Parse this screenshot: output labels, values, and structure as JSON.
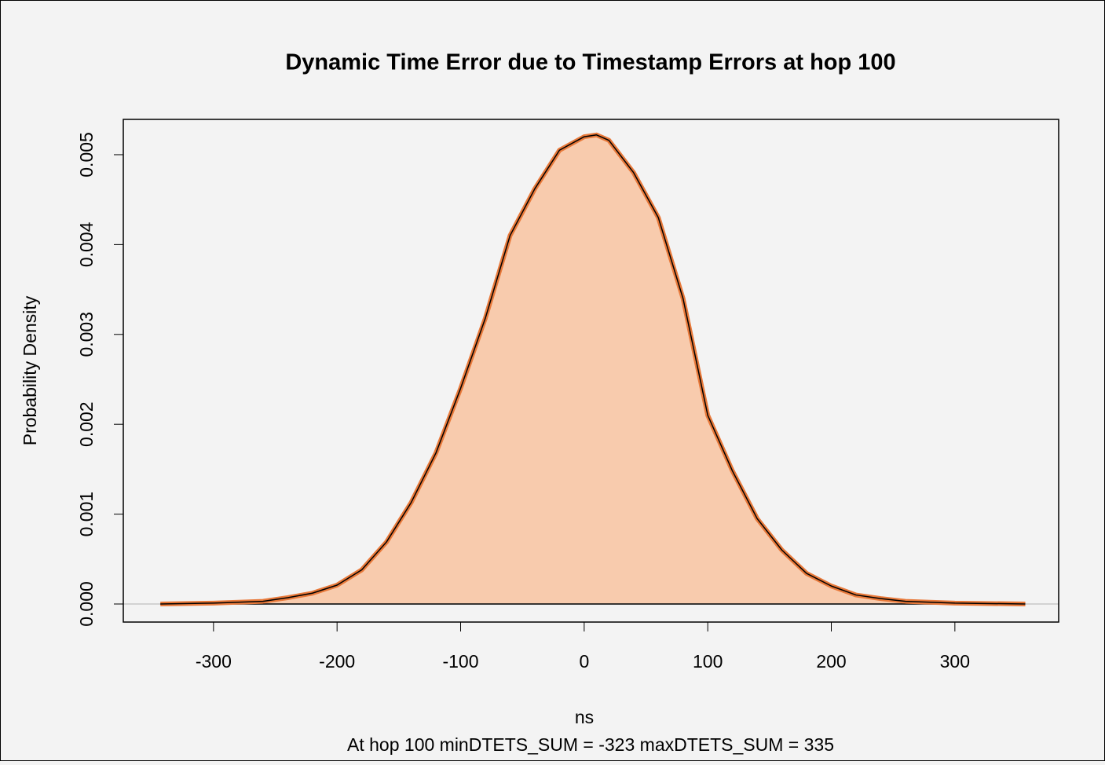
{
  "chart_data": {
    "type": "area",
    "title": "Dynamic Time Error due to Timestamp Errors at hop 100",
    "x_label": "ns",
    "subtitle": "At hop 100    minDTETS_SUM = -323    maxDTETS_SUM = 335",
    "y_label": "Probability Density",
    "x": [
      -343,
      -300,
      -260,
      -240,
      -220,
      -200,
      -180,
      -160,
      -140,
      -120,
      -100,
      -80,
      -60,
      -40,
      -20,
      0,
      10,
      20,
      40,
      60,
      80,
      100,
      120,
      140,
      160,
      180,
      200,
      220,
      240,
      260,
      300,
      357
    ],
    "series": [
      {
        "color": "#e8793a",
        "fill": "#f8cbad",
        "outline": "#000000",
        "values": [
          0,
          1e-05,
          3e-05,
          7e-05,
          0.00012,
          0.00021,
          0.00038,
          0.00069,
          0.00113,
          0.00168,
          0.0024,
          0.00318,
          0.0041,
          0.00462,
          0.00505,
          0.0052,
          0.00522,
          0.00516,
          0.0048,
          0.0043,
          0.0034,
          0.0021,
          0.00148,
          0.00095,
          0.0006,
          0.00034,
          0.0002,
          0.0001,
          6e-05,
          3e-05,
          1e-05,
          0
        ]
      }
    ],
    "xlim": [
      -373,
      384
    ],
    "ylim": [
      -0.000201,
      0.005393
    ],
    "xticks": [
      -300,
      -200,
      -100,
      0,
      100,
      200,
      300
    ],
    "yticks": [
      {
        "value": 0,
        "label": "0.000"
      },
      {
        "value": 0.001,
        "label": "0.001"
      },
      {
        "value": 0.002,
        "label": "0.002"
      },
      {
        "value": 0.003,
        "label": "0.003"
      },
      {
        "value": 0.004,
        "label": "0.004"
      },
      {
        "value": 0.005,
        "label": "0.005"
      }
    ],
    "baseline_color": "#c8c8c8"
  }
}
